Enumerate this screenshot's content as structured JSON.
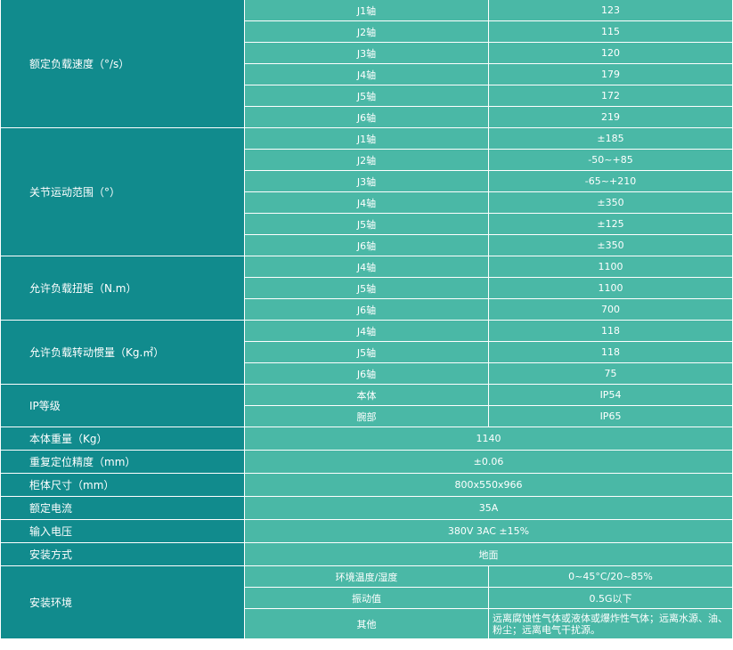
{
  "groups": [
    {
      "label": "额定负载速度（°/s）",
      "rows": [
        {
          "axis": "J1轴",
          "value": "123"
        },
        {
          "axis": "J2轴",
          "value": "115"
        },
        {
          "axis": "J3轴",
          "value": "120"
        },
        {
          "axis": "J4轴",
          "value": "179"
        },
        {
          "axis": "J5轴",
          "value": "172"
        },
        {
          "axis": "J6轴",
          "value": "219"
        }
      ]
    },
    {
      "label": "关节运动范围（°）",
      "rows": [
        {
          "axis": "J1轴",
          "value": "±185"
        },
        {
          "axis": "J2轴",
          "value": "-50~+85"
        },
        {
          "axis": "J3轴",
          "value": "-65~+210"
        },
        {
          "axis": "J4轴",
          "value": "±350"
        },
        {
          "axis": "J5轴",
          "value": "±125"
        },
        {
          "axis": "J6轴",
          "value": "±350"
        }
      ]
    },
    {
      "label": "允许负载扭矩（N.m）",
      "rows": [
        {
          "axis": "J4轴",
          "value": "1100"
        },
        {
          "axis": "J5轴",
          "value": "1100"
        },
        {
          "axis": "J6轴",
          "value": "700"
        }
      ]
    },
    {
      "label": "允许负载转动惯量（Kg.㎡）",
      "rows": [
        {
          "axis": "J4轴",
          "value": "118"
        },
        {
          "axis": "J5轴",
          "value": "118"
        },
        {
          "axis": "J6轴",
          "value": "75"
        }
      ]
    },
    {
      "label": "IP等级",
      "rows": [
        {
          "axis": "本体",
          "value": "IP54"
        },
        {
          "axis": "腕部",
          "value": "IP65"
        }
      ]
    }
  ],
  "singles": [
    {
      "label": "本体重量（Kg）",
      "value": "1140"
    },
    {
      "label": "重复定位精度（mm）",
      "value": "±0.06"
    },
    {
      "label": "柜体尺寸（mm）",
      "value": "800x550x966"
    },
    {
      "label": "额定电流",
      "value": "35A"
    },
    {
      "label": "输入电压",
      "value": "380V 3AC ±15%"
    },
    {
      "label": "安装方式",
      "value": "地面"
    }
  ],
  "environment": {
    "label": "安装环境",
    "rows": [
      {
        "name": "环境温度/湿度",
        "value": "0~45°C/20~85%"
      },
      {
        "name": "振动值",
        "value": "0.5G以下"
      },
      {
        "name": "其他",
        "value": "远离腐蚀性气体或液体或爆炸性气体；远离水源、油、粉尘；远离电气干扰源。"
      }
    ]
  }
}
